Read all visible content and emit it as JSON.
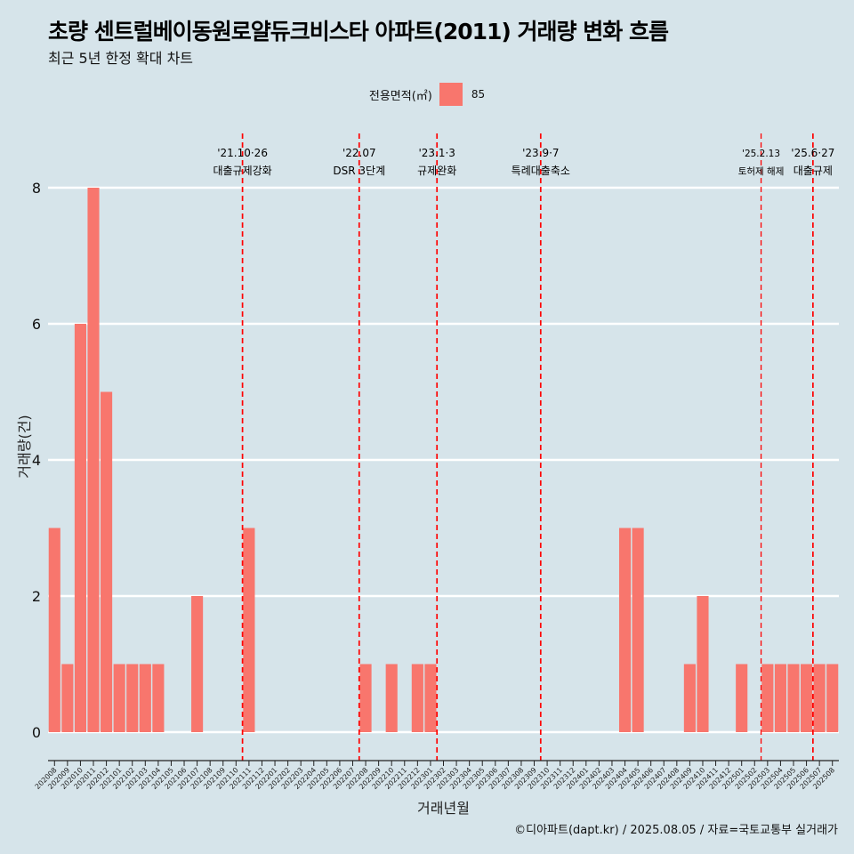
{
  "title": "초량 센트럴베이동원로얄듀크비스타 아파트(2011) 거래량 변화 흐름",
  "subtitle": "최근 5년 한정 확대 차트",
  "legend": {
    "title": "전용면적(㎡)",
    "label": "85"
  },
  "caption": "©디아파트(dapt.kr) / 2025.08.05 / 자료=국토교통부 실거래가",
  "colors": {
    "bar": "#f8766d",
    "vline": "#ff0000",
    "grid": "#ffffff",
    "background": "#d6e4ea"
  },
  "chart_data": {
    "type": "bar",
    "xlabel": "거래년월",
    "ylabel": "거래량(건)",
    "ylim": [
      0,
      8
    ],
    "yticks": [
      0,
      2,
      4,
      6,
      8
    ],
    "grid": true,
    "legend_position": "top",
    "categories": [
      "202008",
      "202009",
      "202010",
      "202011",
      "202012",
      "202101",
      "202102",
      "202103",
      "202104",
      "202105",
      "202106",
      "202107",
      "202108",
      "202109",
      "202110",
      "202111",
      "202112",
      "202201",
      "202202",
      "202203",
      "202204",
      "202205",
      "202206",
      "202207",
      "202208",
      "202209",
      "202210",
      "202211",
      "202212",
      "202301",
      "202302",
      "202303",
      "202304",
      "202305",
      "202306",
      "202307",
      "202308",
      "202309",
      "202310",
      "202311",
      "202312",
      "202401",
      "202402",
      "202403",
      "202404",
      "202405",
      "202406",
      "202407",
      "202408",
      "202409",
      "202410",
      "202411",
      "202412",
      "202501",
      "202502",
      "202503",
      "202504",
      "202505",
      "202506",
      "202507",
      "202508"
    ],
    "series": [
      {
        "name": "85",
        "values": [
          3,
          1,
          6,
          8,
          5,
          1,
          1,
          1,
          1,
          0,
          0,
          2,
          0,
          0,
          0,
          3,
          0,
          0,
          0,
          0,
          0,
          0,
          0,
          0,
          1,
          0,
          1,
          0,
          1,
          1,
          0,
          0,
          0,
          0,
          0,
          0,
          0,
          0,
          0,
          0,
          0,
          0,
          0,
          0,
          3,
          3,
          0,
          0,
          0,
          1,
          2,
          0,
          0,
          1,
          0,
          1,
          1,
          1,
          1,
          1,
          1
        ]
      }
    ],
    "annotations": [
      {
        "position": 14.5,
        "label1": "'21.10·26",
        "label2": "대출규제강화",
        "small": false
      },
      {
        "position": 23.5,
        "label1": "'22.07",
        "label2": "DSR 3단계",
        "small": false
      },
      {
        "position": 29.5,
        "label1": "'23.1·3",
        "label2": "규제완화",
        "small": false
      },
      {
        "position": 37.5,
        "label1": "'23.9·7",
        "label2": "특례대출축소",
        "small": false
      },
      {
        "position": 54.5,
        "label1": "'25.2.13",
        "label2": "토허제 해제",
        "small": true
      },
      {
        "position": 58.5,
        "label1": "'25.6·27",
        "label2": "대출규제",
        "small": false
      }
    ]
  }
}
